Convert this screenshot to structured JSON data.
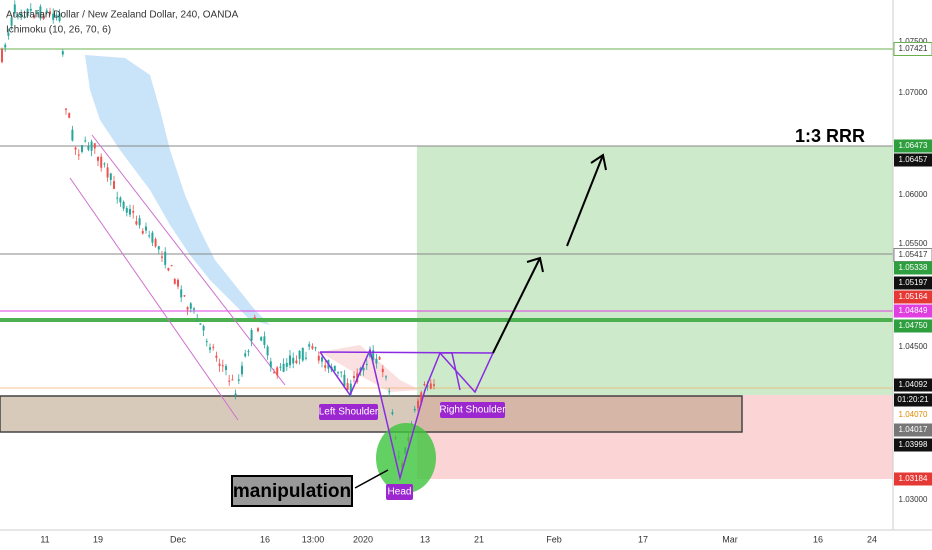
{
  "header": {
    "title": "Australian Dollar / New Zealand Dollar, 240, OANDA",
    "indicator": "Ichimoku (10, 26, 70, 6)"
  },
  "price_axis": [
    "1.07500",
    "1.07421",
    "1.07000",
    "1.06473",
    "1.06457",
    "1.06000",
    "1.05500",
    "1.05417",
    "1.05338",
    "1.05197",
    "1.05164",
    "1.04849",
    "1.04750",
    "1.04500",
    "1.04092",
    "01:20:21",
    "1.04070",
    "1.04017",
    "1.03998",
    "1.03184",
    "1.03000"
  ],
  "time_axis": [
    "11",
    "19",
    "Dec",
    "16",
    "13:00",
    "2020",
    "13",
    "21",
    "Feb",
    "17",
    "Mar",
    "16",
    "24"
  ],
  "annotations": {
    "rrr": "1:3 RRR",
    "left_shoulder": "Left Shoulder",
    "right_shoulder": "Right Shoulder",
    "head": "Head",
    "manipulation": "manipulation"
  }
}
